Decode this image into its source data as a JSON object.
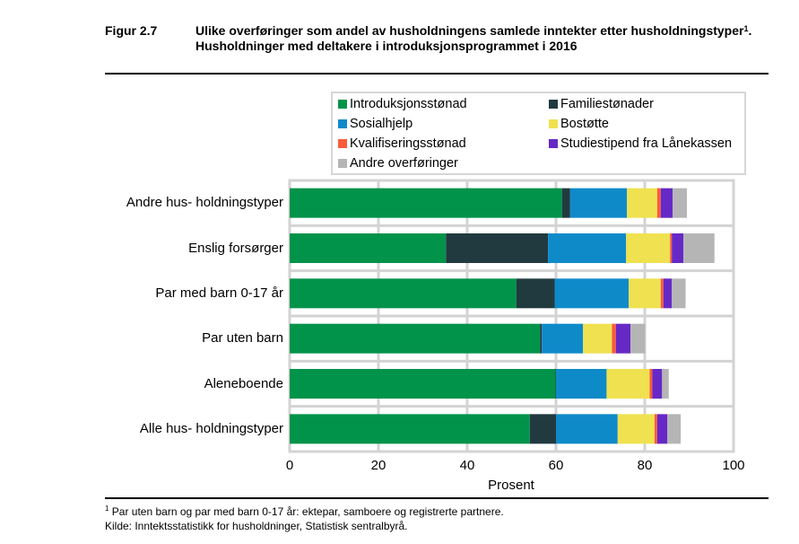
{
  "figure": {
    "label": "Figur 2.7",
    "title_part1": "Ulike overføringer som andel av husholdningens samlede inntekter etter husholdningstyper",
    "title_sup": "1",
    "title_part2": ". Husholdninger med deltakere i introduksjonsprogrammet i 2016"
  },
  "footnotes": {
    "note_sup": "1",
    "note_text": " Par uten barn og par med barn 0-17 år: ektepar, samboere og registrerte partnere.",
    "source": "Kilde: Inntektsstatistikk for husholdninger, Statistisk sentralbyrå."
  },
  "chart_data": {
    "type": "bar",
    "orientation": "horizontal",
    "stacked": true,
    "title": "Ulike overføringer som andel av husholdningens samlede inntekter etter husholdningstyper. Husholdninger med deltakere i introduksjonsprogrammet i 2016",
    "xlabel": "Prosent",
    "ylabel": "",
    "xlim": [
      0,
      100
    ],
    "xticks": [
      "0",
      "20",
      "40",
      "60",
      "80",
      "100"
    ],
    "xtick_values": [
      0,
      20,
      40,
      60,
      80,
      100
    ],
    "grid": true,
    "legend_position": "top",
    "categories": [
      "Andre hus- holdningstyper",
      "Enslig forsørger",
      "Par med barn 0-17 år",
      "Par uten barn",
      "Aleneboende",
      "Alle hus- holdningstyper"
    ],
    "series": [
      {
        "name": "Introduksjonsstønad",
        "color": "#02934a",
        "values": [
          61.4,
          35.2,
          51.1,
          56.4,
          59.9,
          54.1
        ]
      },
      {
        "name": "Familiestønader",
        "color": "#213a40",
        "values": [
          1.8,
          23.0,
          8.6,
          0.4,
          0.1,
          5.9
        ]
      },
      {
        "name": "Sosialhjelp",
        "color": "#0f8ac9",
        "values": [
          12.8,
          17.6,
          16.7,
          9.3,
          11.4,
          13.9
        ]
      },
      {
        "name": "Bostøtte",
        "color": "#efe150",
        "values": [
          6.8,
          9.9,
          7.2,
          6.5,
          9.7,
          8.3
        ]
      },
      {
        "name": "Kvalifiseringsstønad",
        "color": "#fb5b3b",
        "values": [
          0.8,
          0.4,
          0.6,
          0.9,
          0.6,
          0.6
        ]
      },
      {
        "name": "Studiestipend fra Lånekassen",
        "color": "#6629c6",
        "values": [
          2.7,
          2.6,
          1.9,
          3.3,
          2.2,
          2.3
        ]
      },
      {
        "name": "Andre overføringer",
        "color": "#b5b5b5",
        "values": [
          3.2,
          7.0,
          3.1,
          3.3,
          1.5,
          3.0
        ]
      }
    ]
  }
}
